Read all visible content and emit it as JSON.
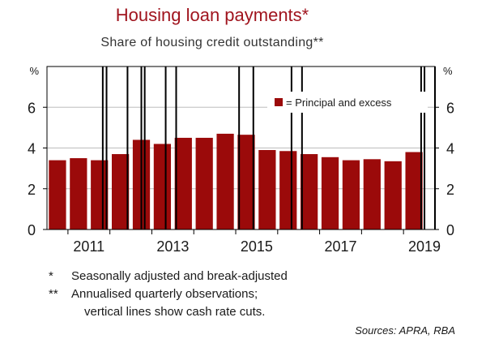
{
  "title": "Housing loan payments*",
  "subtitle": "Share of housing credit outstanding**",
  "chart_data": {
    "type": "bar",
    "unit_left": "%",
    "unit_right": "%",
    "ylim_left": [
      0,
      8
    ],
    "yticks_left": [
      0,
      2,
      4,
      6
    ],
    "ylim_right": [
      0,
      8
    ],
    "yticks_right": [
      0,
      2,
      4,
      6
    ],
    "xlim": [
      2010.5,
      2019.75
    ],
    "xtick_labels": [
      "2011",
      "2013",
      "2015",
      "2017",
      "2019"
    ],
    "xtick_positions": [
      2011,
      2013,
      2015,
      2017,
      2019
    ],
    "series": [
      {
        "name": "= Principal and excess",
        "color": "#9b0a0a",
        "x": [
          2010.75,
          2011.25,
          2011.75,
          2012.25,
          2012.75,
          2013.25,
          2013.75,
          2014.25,
          2014.75,
          2015.25,
          2015.75,
          2016.25,
          2016.75,
          2017.25,
          2017.75,
          2018.25,
          2018.75,
          2019.25
        ],
        "values": [
          3.4,
          3.5,
          3.4,
          3.7,
          4.4,
          4.2,
          4.5,
          4.5,
          4.7,
          4.65,
          3.9,
          3.85,
          3.7,
          3.55,
          3.4,
          3.45,
          3.35,
          3.8
        ]
      }
    ],
    "cash_rate_cuts": [
      2011.83,
      2011.92,
      2012.42,
      2012.75,
      2012.83,
      2013.33,
      2013.58,
      2015.08,
      2015.42,
      2016.33,
      2016.58,
      2019.42,
      2019.5,
      2019.75
    ],
    "legend_position": "top-right"
  },
  "notes": [
    {
      "mark": "*",
      "text": "Seasonally adjusted and break-adjusted"
    },
    {
      "mark": "**",
      "text": "Annualised quarterly observations;"
    },
    {
      "mark": "",
      "text": "vertical lines show cash rate cuts."
    }
  ],
  "source": "Sources: APRA, RBA"
}
